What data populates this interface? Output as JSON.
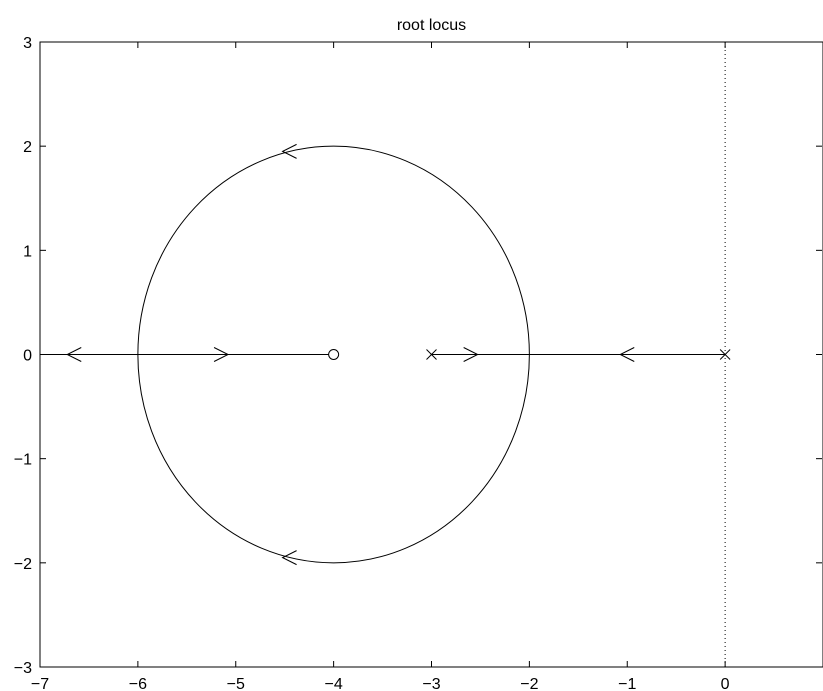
{
  "chart_data": {
    "type": "scatter",
    "title": "root locus",
    "xlabel": "",
    "ylabel": "",
    "xlim": [
      -7,
      1
    ],
    "ylim": [
      -3,
      3
    ],
    "xticks": [
      -7,
      -6,
      -5,
      -4,
      -3,
      -2,
      -1,
      0
    ],
    "xtick_labels": [
      "−7",
      "−6",
      "−5",
      "−4",
      "−3",
      "−2",
      "−1",
      "0"
    ],
    "yticks": [
      -3,
      -2,
      -1,
      0,
      1,
      2,
      3
    ],
    "ytick_labels": [
      "−3",
      "−2",
      "−1",
      "0",
      "1",
      "2",
      "3"
    ],
    "grid": false,
    "line_color": "#000000",
    "poles": [
      {
        "x": -3,
        "y": 0
      },
      {
        "x": 0,
        "y": 0
      }
    ],
    "zeros": [
      {
        "x": -4,
        "y": 0
      }
    ],
    "locus_branches": [
      {
        "shape": "circle",
        "center": [
          -4,
          0
        ],
        "radius": 2
      },
      {
        "shape": "segment",
        "points": [
          [
            -7,
            0
          ],
          [
            -4,
            0
          ]
        ]
      },
      {
        "shape": "segment",
        "points": [
          [
            -3,
            0
          ],
          [
            0,
            0
          ]
        ]
      }
    ],
    "arrows": [
      {
        "x": -6.65,
        "y": 0,
        "direction": "left"
      },
      {
        "x": -5.15,
        "y": 0,
        "direction": "right"
      },
      {
        "x": -2.6,
        "y": 0,
        "direction": "right"
      },
      {
        "x": -1.0,
        "y": 0,
        "direction": "left"
      },
      {
        "x": -4.45,
        "y": 1.95,
        "direction": "left"
      },
      {
        "x": -4.45,
        "y": -1.95,
        "direction": "left"
      }
    ],
    "reference_lines": [
      {
        "axis": "x",
        "value": 0,
        "style": "dotted"
      }
    ]
  }
}
